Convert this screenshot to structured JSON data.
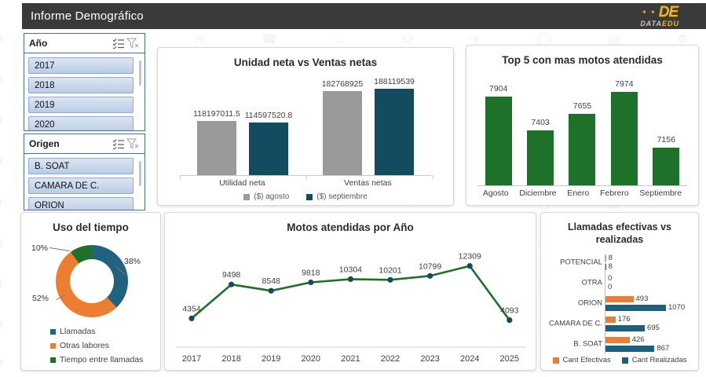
{
  "header": {
    "title": "Informe Demográfico",
    "logo": {
      "mark": "DE",
      "primary": "DATA",
      "secondary": "EDU"
    }
  },
  "slicers": [
    {
      "title": "Año",
      "items": [
        "2017",
        "2018",
        "2019",
        "2020"
      ]
    },
    {
      "title": "Origen",
      "items": [
        "B. SOAT",
        "CAMARA DE C.",
        "ORION"
      ]
    }
  ],
  "colors": {
    "header_bg": "#3a3a3a",
    "logo_yellow": "#f2b51c",
    "series_gray": "#9a9a9a",
    "series_teal": "#134b61",
    "series_green": "#1e7129",
    "series_orange": "#ed7d31",
    "donut_blue": "#20627f",
    "horizontal_teal": "#1e5f7d"
  },
  "chart_data": [
    {
      "type": "bar",
      "title": "Unidad neta vs Ventas netas",
      "categories": [
        "Utilidad neta",
        "Ventas netas"
      ],
      "series": [
        {
          "name": "($) agosto",
          "color": "#9a9a9a",
          "values": [
            118197011.5,
            182768925
          ]
        },
        {
          "name": "($) septiembre",
          "color": "#134b61",
          "values": [
            114597520.8,
            188119539
          ]
        }
      ],
      "ylim": [
        0,
        200000000
      ],
      "grid": false,
      "legend_position": "bottom"
    },
    {
      "type": "bar",
      "title": "Top 5 con mas motos atendidas",
      "categories": [
        "Agosto",
        "Diciembre",
        "Enero",
        "Febrero",
        "Septiembre"
      ],
      "values": [
        7904,
        7403,
        7655,
        7974,
        7156
      ],
      "color": "#1e7129",
      "ylim": [
        6600,
        8100
      ],
      "grid": false
    },
    {
      "type": "pie",
      "subtype": "donut",
      "title": "Uso del tiempo",
      "slices": [
        {
          "label": "Llamadas",
          "value_pct": 38,
          "color": "#20627f"
        },
        {
          "label": "Otras labores",
          "value_pct": 52,
          "color": "#ed7d31"
        },
        {
          "label": "Tiempo entre llamadas",
          "value_pct": 10,
          "color": "#1e7129"
        }
      ],
      "legend_position": "bottom-left"
    },
    {
      "type": "line",
      "title": "Motos atendidas por Año",
      "x": [
        "2017",
        "2018",
        "2019",
        "2020",
        "2021",
        "2022",
        "2023",
        "2024",
        "2025"
      ],
      "values": [
        4354,
        9498,
        8548,
        9818,
        10304,
        10201,
        10799,
        12309,
        4093
      ],
      "line_color": "#1e7129",
      "marker_color": "#134b61",
      "ylim": [
        0,
        15000
      ],
      "grid": false
    },
    {
      "type": "bar-horizontal",
      "title": "Llamadas efectivas vs realizadas",
      "categories": [
        "POTENCIAL",
        "OTRA",
        "ORION",
        "CAMARA DE C.",
        "B. SOAT"
      ],
      "series": [
        {
          "name": "Cant Efectivas",
          "color": "#ed7d31",
          "values": [
            8,
            0,
            493,
            176,
            426
          ]
        },
        {
          "name": "Cant Realizadas",
          "color": "#1e5f7d",
          "values": [
            8,
            0,
            1070,
            695,
            867
          ]
        }
      ],
      "xlim": [
        0,
        1100
      ],
      "legend_position": "bottom"
    }
  ]
}
